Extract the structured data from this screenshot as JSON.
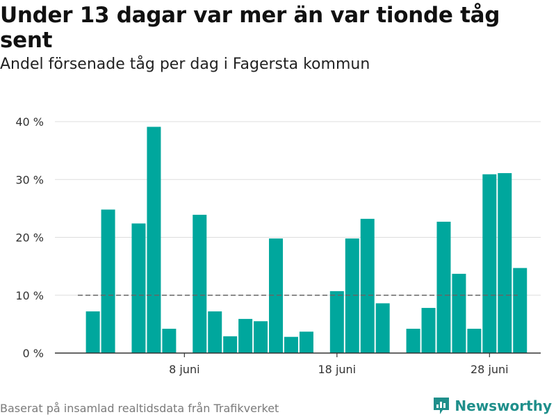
{
  "header": {
    "title": "Under 13 dagar var mer än var tionde tåg sent",
    "subtitle": "Andel försenade tåg per dag i Fagersta kommun"
  },
  "footer": {
    "source": "Baserat på insamlad realtidsdata från Trafikverket",
    "brand": "Newsworthy"
  },
  "colors": {
    "bar": "#00a79d",
    "reference_line": "#666666",
    "grid": "#dddddd",
    "axis": "#333333",
    "brand": "#1f8f8b"
  },
  "chart_data": {
    "type": "bar",
    "title": "Under 13 dagar var mer än var tionde tåg sent",
    "subtitle": "Andel försenade tåg per dag i Fagersta kommun",
    "x_start": "2023-06-01",
    "xlabel": "",
    "ylabel": "",
    "ylim": [
      0,
      40
    ],
    "yticks": [
      0,
      10,
      20,
      30,
      40
    ],
    "ytick_labels": [
      "0 %",
      "10 %",
      "20 %",
      "30 %",
      "40 %"
    ],
    "xtick_labels": [
      {
        "day_index": 7,
        "label": "8 juni"
      },
      {
        "day_index": 17,
        "label": "18 juni"
      },
      {
        "day_index": 27,
        "label": "28 juni"
      }
    ],
    "reference_line": 10,
    "grid": true,
    "values": [
      null,
      7.2,
      24.8,
      null,
      22.4,
      39.1,
      4.2,
      null,
      23.9,
      7.2,
      2.9,
      5.9,
      5.5,
      19.8,
      2.8,
      3.7,
      null,
      10.7,
      19.8,
      23.2,
      8.6,
      null,
      4.2,
      7.8,
      22.7,
      13.7,
      4.2,
      30.9,
      31.1,
      14.7
    ]
  }
}
